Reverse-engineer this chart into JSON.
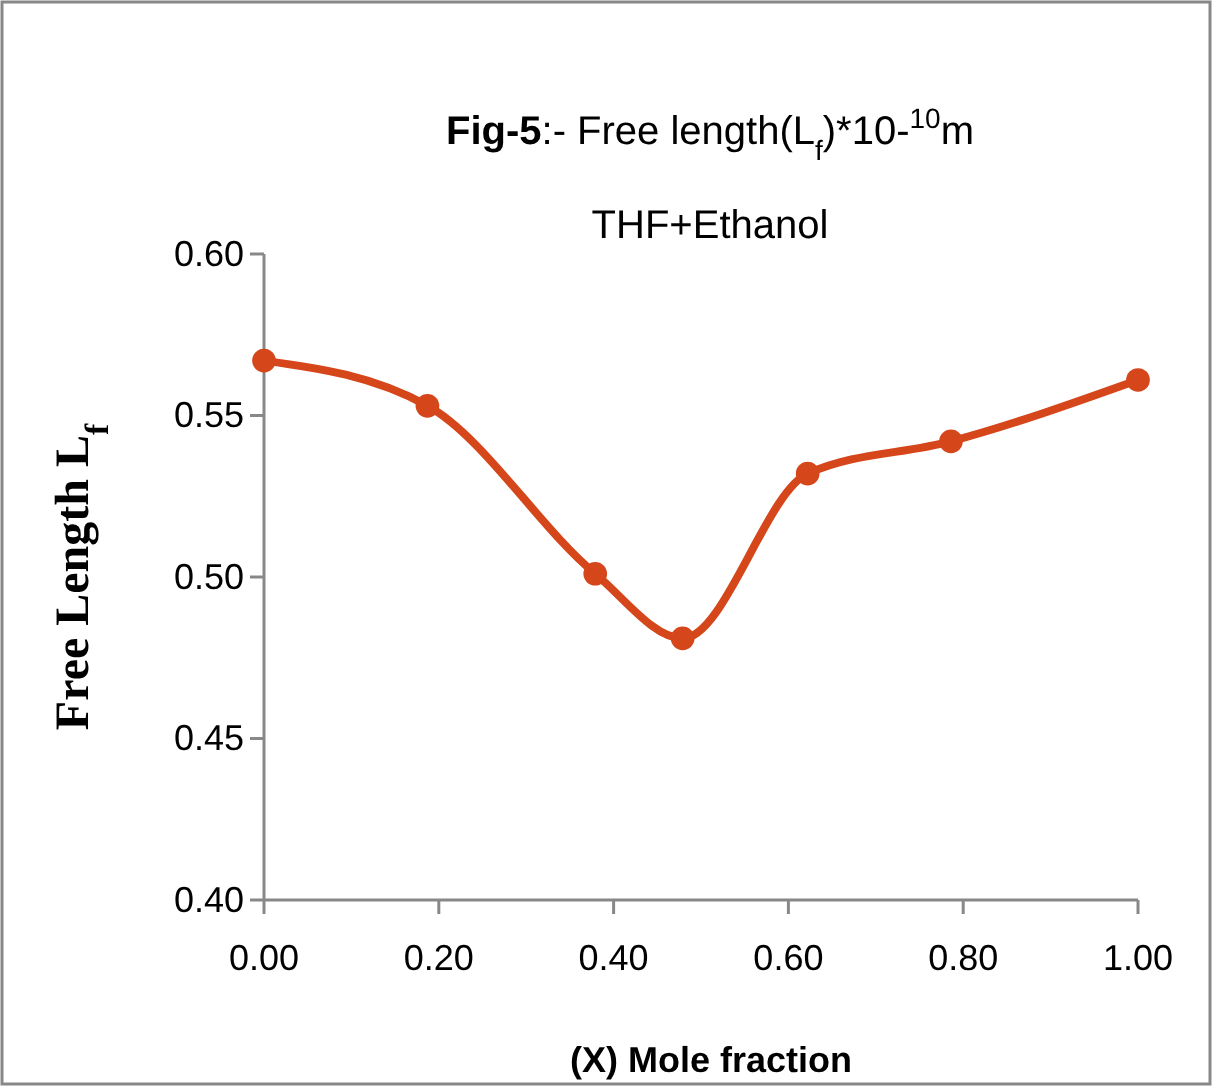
{
  "chart_data": {
    "type": "line",
    "title": "Fig-5:- Free length(L$_{f}$)*10-$^{10}$m",
    "subtitle": "THF+Ethanol",
    "xlabel": "(X) Mole fraction",
    "ylabel": "Free Length L$_{f}$",
    "x": [
      0.0,
      0.187,
      0.379,
      0.479,
      0.622,
      0.786,
      1.0
    ],
    "series": [
      {
        "color": "#d5461b",
        "values": [
          0.567,
          0.553,
          0.501,
          0.481,
          0.532,
          0.542,
          0.561
        ]
      }
    ],
    "xlim": [
      0,
      1
    ],
    "xticks": [
      {
        "value": 0,
        "label": "0.00"
      },
      {
        "value": 0.2,
        "label": "0.20"
      },
      {
        "value": 0.4,
        "label": "0.40"
      },
      {
        "value": 0.6,
        "label": "0.60"
      },
      {
        "value": 0.8,
        "label": "0.80"
      },
      {
        "value": 1,
        "label": "1.00"
      }
    ],
    "ylim": [
      0.4,
      0.6
    ],
    "yticks": [
      {
        "value": 0.4,
        "label": "0.40"
      },
      {
        "value": 0.45,
        "label": "0.45"
      },
      {
        "value": 0.5,
        "label": "0.50"
      },
      {
        "value": 0.55,
        "label": "0.55"
      },
      {
        "value": 0.6,
        "label": "0.60"
      }
    ],
    "grid": false,
    "marker": "circle",
    "line_style": "solid"
  }
}
